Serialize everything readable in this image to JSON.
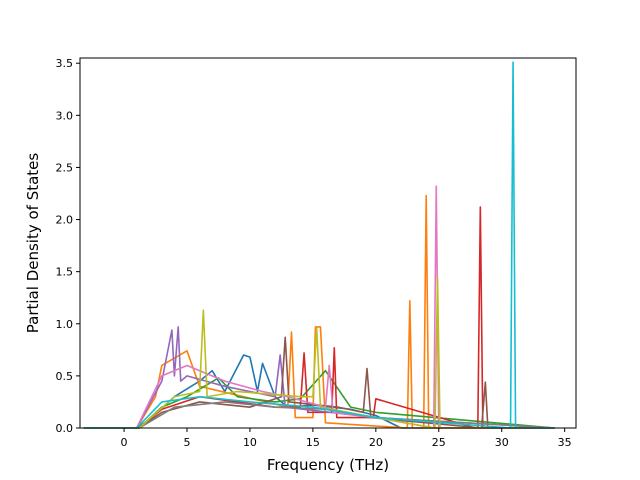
{
  "chart_data": {
    "type": "line",
    "title": "",
    "xlabel": "Frequency (THz)",
    "ylabel": "Partial Density of States",
    "xlim": [
      -3.5,
      35.9
    ],
    "ylim": [
      0,
      3.55
    ],
    "xticks": [
      0,
      5,
      10,
      15,
      20,
      25,
      30,
      35
    ],
    "yticks": [
      0.0,
      0.5,
      1.0,
      1.5,
      2.0,
      2.5,
      3.0,
      3.5
    ],
    "xtick_labels": [
      "0",
      "5",
      "10",
      "15",
      "20",
      "25",
      "30",
      "35"
    ],
    "ytick_labels": [
      "0.0",
      "0.5",
      "1.0",
      "1.5",
      "2.0",
      "2.5",
      "3.0",
      "3.5"
    ],
    "grid": false,
    "legend": "none",
    "series": [
      {
        "color": "#1f77b4",
        "x": [
          -3.2,
          1.0,
          2.0,
          4.0,
          6.0,
          7.0,
          8.0,
          9.5,
          10.0,
          10.6,
          11.0,
          12.0,
          13.0,
          15.0,
          18.0,
          20.0,
          22.0,
          24.0,
          27.0,
          30.0,
          34.2
        ],
        "y": [
          0,
          0,
          0.08,
          0.3,
          0.45,
          0.55,
          0.35,
          0.7,
          0.68,
          0.35,
          0.62,
          0.3,
          0.2,
          0.22,
          0.18,
          0.12,
          0.0,
          0.0,
          0.0,
          0.0,
          0
        ]
      },
      {
        "color": "#ff7f0e",
        "x": [
          -3.2,
          1.0,
          2.5,
          3.0,
          5.0,
          6.0,
          13.0,
          13.3,
          13.6,
          15.0,
          15.2,
          15.6,
          16.0,
          22.5,
          22.7,
          22.9,
          23.8,
          24.0,
          24.2,
          34.2
        ],
        "y": [
          0,
          0,
          0.3,
          0.6,
          0.74,
          0.4,
          0.2,
          0.92,
          0.1,
          0.1,
          0.97,
          0.97,
          0.05,
          0.0,
          1.22,
          0.0,
          0.0,
          2.23,
          0.0,
          0
        ]
      },
      {
        "color": "#2ca02c",
        "x": [
          -3.2,
          1.2,
          3.0,
          5.0,
          7.5,
          9.0,
          12.0,
          14.0,
          16.0,
          18.0,
          20.0,
          34.2
        ],
        "y": [
          0,
          0,
          0.2,
          0.3,
          0.48,
          0.3,
          0.25,
          0.28,
          0.55,
          0.2,
          0.15,
          0
        ]
      },
      {
        "color": "#d62728",
        "x": [
          -3.2,
          1.2,
          3.0,
          6.0,
          9.0,
          12.0,
          14.0,
          14.3,
          14.6,
          16.5,
          16.7,
          16.9,
          19.8,
          20.0,
          27.9,
          28.1,
          28.3,
          28.5,
          34.2
        ],
        "y": [
          0,
          0,
          0.18,
          0.3,
          0.25,
          0.2,
          0.2,
          0.72,
          0.15,
          0.15,
          0.77,
          0.1,
          0.1,
          0.28,
          0.0,
          0.0,
          2.12,
          0.0,
          0
        ]
      },
      {
        "color": "#9467bd",
        "x": [
          -3.2,
          1.0,
          3.0,
          3.8,
          4.0,
          4.3,
          4.5,
          5.0,
          8.0,
          12.0,
          12.4,
          12.8,
          20.0,
          34.2
        ],
        "y": [
          0,
          0,
          0.45,
          0.94,
          0.5,
          0.97,
          0.45,
          0.5,
          0.4,
          0.3,
          0.7,
          0.2,
          0.1,
          0
        ]
      },
      {
        "color": "#8c564b",
        "x": [
          -3.2,
          1.2,
          3.0,
          6.0,
          10.0,
          12.5,
          12.8,
          13.1,
          17.0,
          19.0,
          19.3,
          19.6,
          28.4,
          28.7,
          28.9,
          34.2
        ],
        "y": [
          0,
          0,
          0.15,
          0.25,
          0.2,
          0.3,
          0.87,
          0.25,
          0.2,
          0.15,
          0.57,
          0.1,
          0.0,
          0.44,
          0.0,
          0
        ]
      },
      {
        "color": "#e377c2",
        "x": [
          -3.2,
          1.0,
          3.0,
          5.0,
          8.0,
          11.0,
          13.0,
          16.0,
          16.3,
          16.6,
          20.0,
          24.6,
          24.8,
          25.0,
          34.2
        ],
        "y": [
          0,
          0,
          0.5,
          0.6,
          0.45,
          0.35,
          0.3,
          0.2,
          0.6,
          0.15,
          0.1,
          0.0,
          2.32,
          0.0,
          0
        ]
      },
      {
        "color": "#7f7f7f",
        "x": [
          -3.2,
          1.2,
          4.0,
          8.0,
          12.0,
          16.0,
          20.0,
          34.2
        ],
        "y": [
          0,
          0,
          0.2,
          0.25,
          0.2,
          0.18,
          0.1,
          0
        ]
      },
      {
        "color": "#bcbd22",
        "x": [
          -3.2,
          1.2,
          4.0,
          6.0,
          6.3,
          6.6,
          9.0,
          14.0,
          15.0,
          15.3,
          15.6,
          20.0,
          24.7,
          24.9,
          25.1,
          34.2
        ],
        "y": [
          0,
          0,
          0.3,
          0.35,
          1.13,
          0.3,
          0.35,
          0.3,
          0.3,
          0.96,
          0.2,
          0.1,
          0.0,
          1.44,
          0.0,
          0
        ]
      },
      {
        "color": "#17becf",
        "x": [
          -3.2,
          1.0,
          3.0,
          6.0,
          10.0,
          15.0,
          20.0,
          30.7,
          30.9,
          31.1,
          34.2
        ],
        "y": [
          0,
          0,
          0.25,
          0.3,
          0.25,
          0.2,
          0.1,
          0.0,
          3.51,
          0.0,
          0
        ]
      }
    ]
  }
}
